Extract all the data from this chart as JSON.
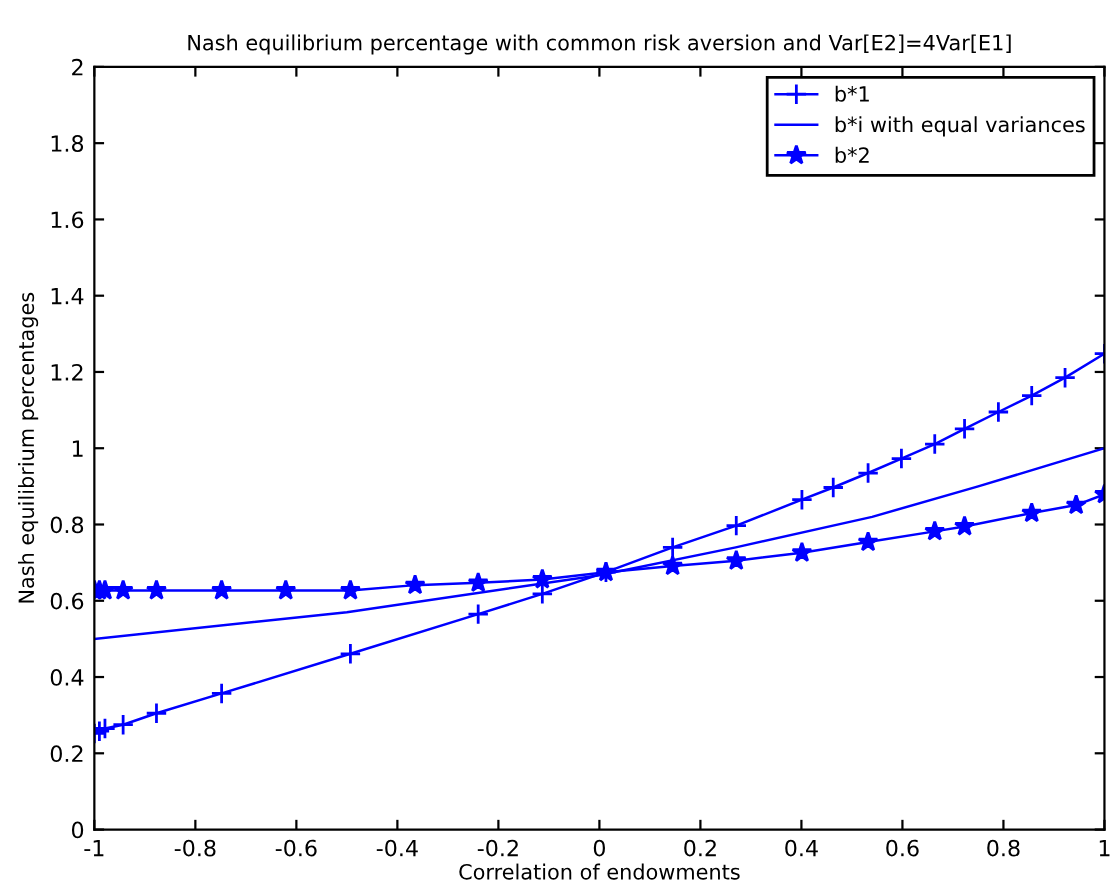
{
  "chart_data": {
    "type": "line",
    "title": "Nash equilibrium percentage with common risk aversion and Var[E2]=4Var[E1]",
    "xlabel": "Correlation of endowments",
    "ylabel": "Nash equilibrium percentages",
    "xlim": [
      -1,
      1
    ],
    "ylim": [
      0,
      2
    ],
    "xticks": [
      {
        "value": -1,
        "label": "-1"
      },
      {
        "value": -0.8,
        "label": "-0.8"
      },
      {
        "value": -0.6,
        "label": "-0.6"
      },
      {
        "value": -0.4,
        "label": "-0.4"
      },
      {
        "value": -0.2,
        "label": "-0.2"
      },
      0,
      0.2,
      0.4,
      0.6,
      0.8,
      1
    ],
    "yticks": [
      0,
      0.2,
      0.4,
      0.6,
      0.8,
      1,
      1.2,
      1.4,
      1.6,
      1.8,
      2
    ],
    "grid": false,
    "legend": "top right",
    "series": [
      {
        "name": "b*1",
        "color": "#0000ff",
        "marker": "cross",
        "x": [
          -1,
          -0.99,
          -0.979,
          -0.943,
          -0.877,
          -0.748,
          -0.493,
          -0.24,
          -0.113,
          0.013,
          0.145,
          0.271,
          0.401,
          0.463,
          0.532,
          0.598,
          0.664,
          0.723,
          0.79,
          0.856,
          0.922,
          1.0
        ],
        "values": [
          0.252,
          0.258,
          0.265,
          0.275,
          0.305,
          0.357,
          0.461,
          0.565,
          0.618,
          0.675,
          0.74,
          0.797,
          0.865,
          0.897,
          0.935,
          0.973,
          1.011,
          1.051,
          1.095,
          1.138,
          1.185,
          1.248
        ]
      },
      {
        "name": "b*i with equal variances",
        "color": "#0000ff",
        "marker": "none",
        "x": [
          -1,
          -0.5,
          0,
          0.27,
          0.54,
          0.75,
          1.0
        ],
        "values": [
          0.5,
          0.57,
          0.667,
          0.74,
          0.82,
          0.9,
          1.0
        ]
      },
      {
        "name": "b*2",
        "color": "#0000ff",
        "marker": "star",
        "x": [
          -1,
          -0.99,
          -0.979,
          -0.943,
          -0.877,
          -0.748,
          -0.621,
          -0.493,
          -0.365,
          -0.24,
          -0.113,
          0.013,
          0.145,
          0.271,
          0.401,
          0.532,
          0.664,
          0.723,
          0.856,
          0.944,
          1.0
        ],
        "values": [
          0.627,
          0.627,
          0.627,
          0.627,
          0.627,
          0.627,
          0.627,
          0.627,
          0.641,
          0.647,
          0.656,
          0.675,
          0.691,
          0.705,
          0.726,
          0.754,
          0.782,
          0.795,
          0.83,
          0.851,
          0.879
        ]
      }
    ]
  }
}
